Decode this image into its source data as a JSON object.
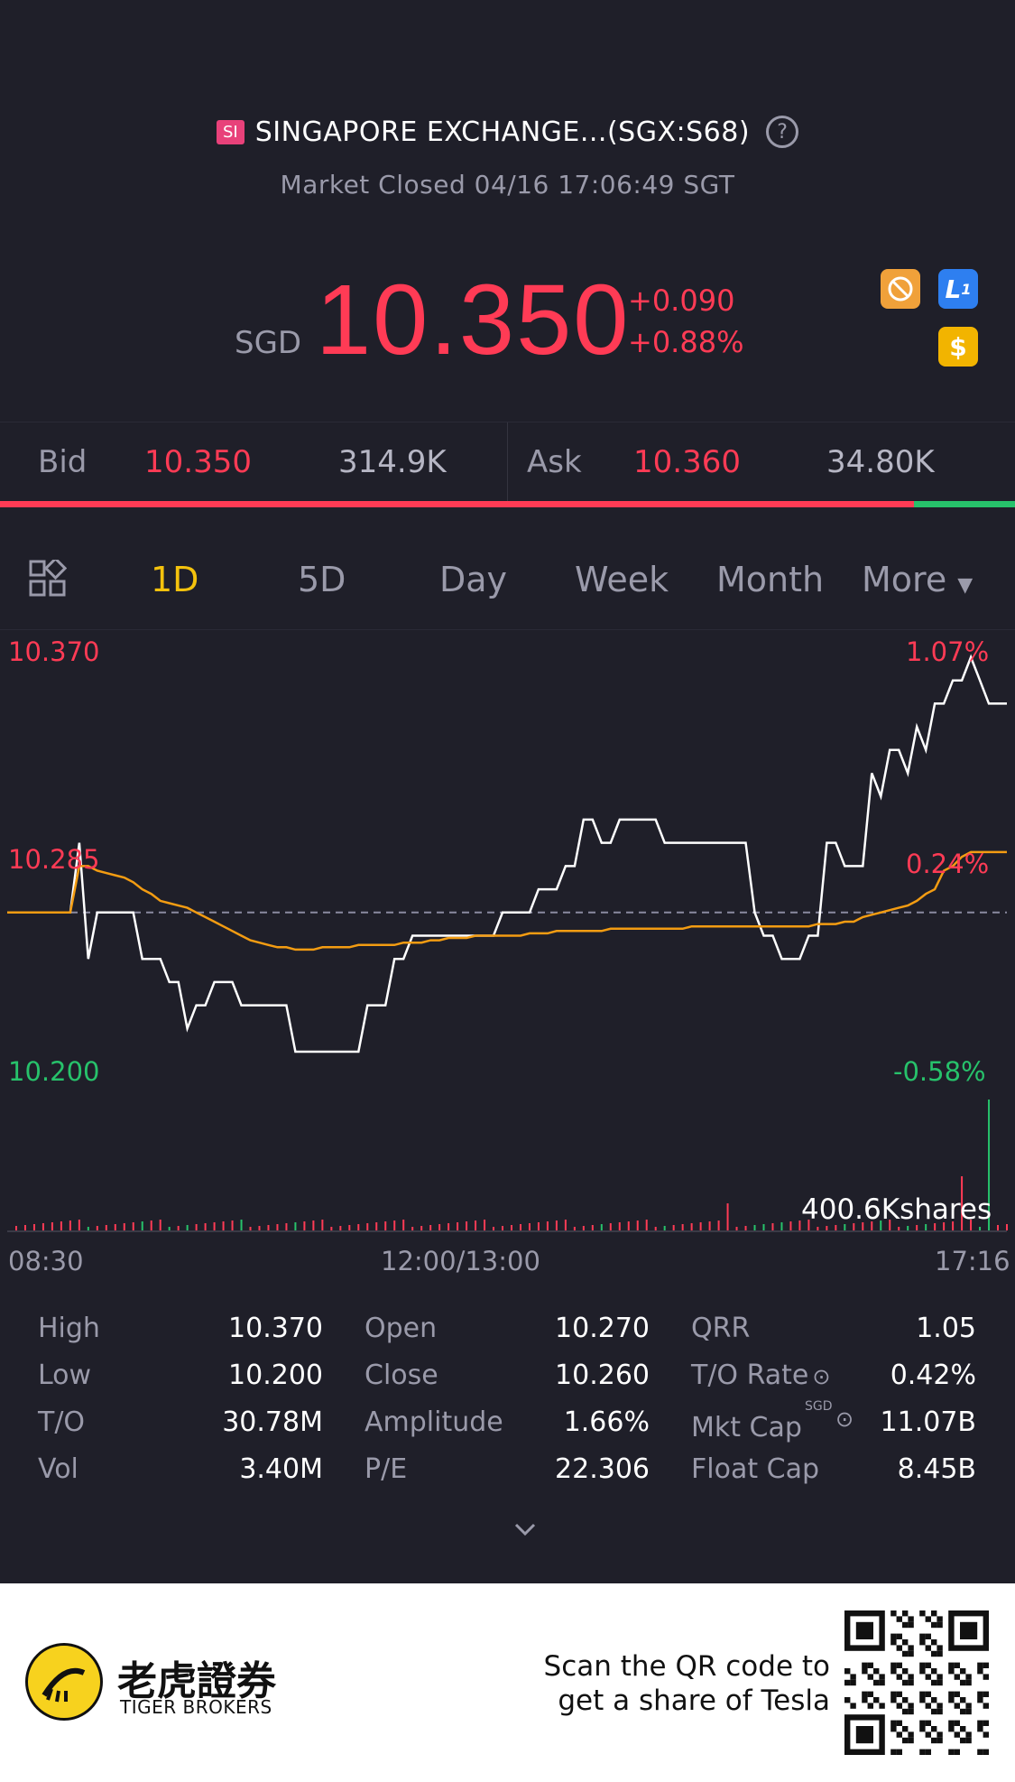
{
  "header": {
    "badge": "SI",
    "title": "SINGAPORE EXCHANGE...(SGX:S68)",
    "help_icon": "question-circle-icon",
    "status": "Market Closed 04/16 17:06:49 SGT"
  },
  "quote": {
    "currency": "SGD",
    "price": "10.350",
    "change": "+0.090",
    "change_pct": "+0.88%",
    "icons": [
      "no-short-icon",
      "level1-icon",
      "dollar-icon"
    ],
    "up_color": "#ff3b55",
    "down_color": "#27c26b"
  },
  "bidask": {
    "bid_label": "Bid",
    "bid_price": "10.350",
    "bid_size": "314.9K",
    "ask_label": "Ask",
    "ask_price": "10.360",
    "ask_size": "34.80K",
    "bid_ratio": 0.9
  },
  "tabs": {
    "grid_icon": "grid-icon",
    "items": [
      "1D",
      "5D",
      "Day",
      "Week",
      "Month",
      "More"
    ],
    "active": "1D",
    "accent": "#f4c20d"
  },
  "chart": {
    "y_high": "10.370",
    "y_mid": "10.285",
    "y_low": "10.200",
    "pct_high": "1.07%",
    "pct_mid": "0.24%",
    "pct_low": "-0.58%",
    "x_start": "08:30",
    "x_mid": "12:00/13:00",
    "x_end": "17:16",
    "volume_label": "400.6Kshares"
  },
  "chart_data": {
    "type": "line",
    "ylim": [
      10.2,
      10.37
    ],
    "series": [
      {
        "values": [
          10.26,
          10.26,
          10.26,
          10.26,
          10.26,
          10.26,
          10.26,
          10.26,
          10.29,
          10.24,
          10.26,
          10.26,
          10.26,
          10.26,
          10.26,
          10.24,
          10.24,
          10.24,
          10.23,
          10.23,
          10.21,
          10.22,
          10.22,
          10.23,
          10.23,
          10.23,
          10.22,
          10.22,
          10.22,
          10.22,
          10.22,
          10.22,
          10.2,
          10.2,
          10.2,
          10.2,
          10.2,
          10.2,
          10.2,
          10.2,
          10.22,
          10.22,
          10.22,
          10.24,
          10.24,
          10.25,
          10.25,
          10.25,
          10.25,
          10.25,
          10.25,
          10.25,
          10.25,
          10.25,
          10.25,
          10.26,
          10.26,
          10.26,
          10.26,
          10.27,
          10.27,
          10.27,
          10.28,
          10.28,
          10.3,
          10.3,
          10.29,
          10.29,
          10.3,
          10.3,
          10.3,
          10.3,
          10.3,
          10.29,
          10.29,
          10.29,
          10.29,
          10.29,
          10.29,
          10.29,
          10.29,
          10.29,
          10.29,
          10.26,
          10.25,
          10.25,
          10.24,
          10.24,
          10.24,
          10.25,
          10.25,
          10.29,
          10.29,
          10.28,
          10.28,
          10.28,
          10.32,
          10.31,
          10.33,
          10.33,
          10.32,
          10.34,
          10.33,
          10.35,
          10.35,
          10.36,
          10.36,
          10.37,
          10.36,
          10.35,
          10.35,
          10.35
        ]
      },
      {
        "values": [
          10.26,
          10.26,
          10.26,
          10.26,
          10.26,
          10.26,
          10.26,
          10.26,
          10.28,
          10.28,
          10.278,
          10.277,
          10.276,
          10.275,
          10.273,
          10.27,
          10.268,
          10.265,
          10.264,
          10.263,
          10.262,
          10.26,
          10.258,
          10.256,
          10.254,
          10.252,
          10.25,
          10.248,
          10.247,
          10.246,
          10.245,
          10.245,
          10.244,
          10.244,
          10.244,
          10.245,
          10.245,
          10.245,
          10.245,
          10.246,
          10.246,
          10.246,
          10.246,
          10.246,
          10.247,
          10.247,
          10.247,
          10.248,
          10.248,
          10.249,
          10.249,
          10.249,
          10.25,
          10.25,
          10.25,
          10.25,
          10.25,
          10.25,
          10.251,
          10.251,
          10.251,
          10.252,
          10.252,
          10.252,
          10.252,
          10.252,
          10.252,
          10.253,
          10.253,
          10.253,
          10.253,
          10.253,
          10.253,
          10.253,
          10.253,
          10.253,
          10.254,
          10.254,
          10.254,
          10.254,
          10.254,
          10.254,
          10.254,
          10.254,
          10.254,
          10.254,
          10.254,
          10.254,
          10.254,
          10.254,
          10.255,
          10.255,
          10.255,
          10.256,
          10.256,
          10.258,
          10.259,
          10.26,
          10.261,
          10.262,
          10.263,
          10.265,
          10.268,
          10.27,
          10.278,
          10.28,
          10.284,
          10.286,
          10.286,
          10.286,
          10.286,
          10.286
        ]
      }
    ],
    "prev_close": 10.26
  },
  "stats": {
    "high_label": "High",
    "high": "10.370",
    "low_label": "Low",
    "low": "10.200",
    "to_label": "T/O",
    "to": "30.78M",
    "vol_label": "Vol",
    "vol": "3.40M",
    "open_label": "Open",
    "open": "10.270",
    "close_label": "Close",
    "close": "10.260",
    "amp_label": "Amplitude",
    "amp": "1.66%",
    "pe_label": "P/E",
    "pe": "22.306",
    "qrr_label": "QRR",
    "qrr": "1.05",
    "torate_label": "T/O Rate",
    "torate": "0.42%",
    "mktcap_label": "Mkt Cap",
    "mktcap_currency": "SGD",
    "mktcap": "11.07B",
    "floatcap_label": "Float Cap",
    "floatcap": "8.45B"
  },
  "footer": {
    "logo_cn": "老虎證券",
    "logo_en": "TIGER BROKERS",
    "scan_line1": "Scan the QR code to",
    "scan_line2": "get a share of Tesla"
  }
}
